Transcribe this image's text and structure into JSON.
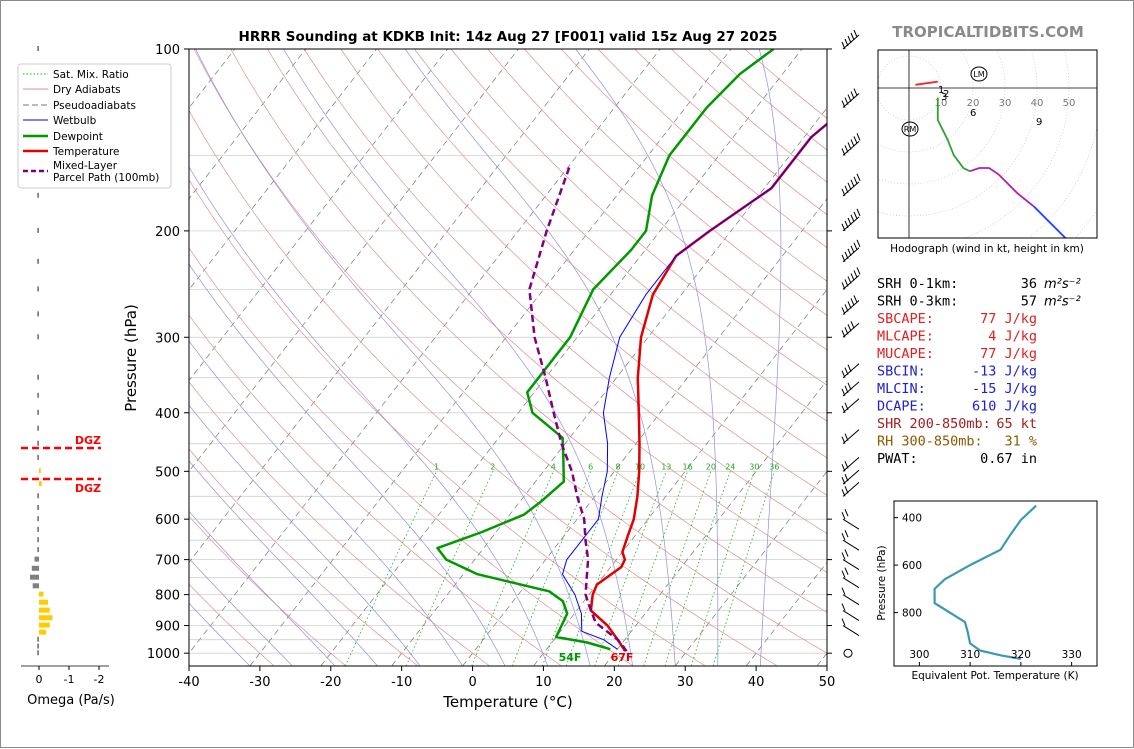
{
  "header": {
    "title": "HRRR Sounding at KDKB Init: 14z Aug 27 [F001] valid 15z Aug 27 2025",
    "brand": "TROPICALTIDBITS.COM"
  },
  "colors": {
    "temperature": "#e00000",
    "dewpoint": "#009900",
    "wetbulb": "#0000ff",
    "parcel": "#800080",
    "dry_adiabat": "#e09090",
    "moist_adiabat": "#9090e0",
    "mixing_ratio": "#22aa22",
    "dgz": "#ff0000",
    "omega_up": "#ffcc00",
    "omega_down": "#808080",
    "theta_e": "#3a9ab0"
  },
  "chart_data": [
    {
      "type": "line",
      "subtype": "skew-T log-P",
      "xlabel": "Temperature (°C)",
      "ylabel": "Pressure (hPa)",
      "xlim": [
        -40,
        50
      ],
      "ylim": [
        1050,
        100
      ],
      "y_scale": "log",
      "x_ticks": [
        -40,
        -30,
        -20,
        -10,
        0,
        10,
        20,
        30,
        40,
        50
      ],
      "y_ticks": [
        100,
        200,
        300,
        400,
        500,
        600,
        700,
        800,
        900,
        1000
      ],
      "legend": {
        "placement": "top-left",
        "entries": [
          "Sat. Mix. Ratio",
          "Dry Adiabats",
          "Pseudoadiabats",
          "Wetbulb",
          "Dewpoint",
          "Temperature",
          "Mixed-Layer\nParcel Path (100mb)"
        ]
      },
      "mixing_ratio_labels": [
        "1",
        "2",
        "4",
        "6",
        "8",
        "10",
        "13",
        "16",
        "20",
        "24",
        "30",
        "36"
      ],
      "series": [
        {
          "name": "Temperature",
          "points": [
            [
              21.3,
              992
            ],
            [
              19,
              950
            ],
            [
              16,
              900
            ],
            [
              12,
              850
            ],
            [
              10.5,
              800
            ],
            [
              10,
              770
            ],
            [
              11.5,
              720
            ],
            [
              11.2,
              700
            ],
            [
              10,
              680
            ],
            [
              9,
              640
            ],
            [
              8,
              600
            ],
            [
              6,
              550
            ],
            [
              3.5,
              500
            ],
            [
              0.5,
              450
            ],
            [
              -3,
              400
            ],
            [
              -7,
              350
            ],
            [
              -11,
              300
            ],
            [
              -14,
              255
            ],
            [
              -15,
              220
            ],
            [
              -13,
              200
            ],
            [
              -9,
              170
            ],
            [
              -9,
              140
            ],
            [
              -6,
              115
            ],
            [
              -3,
              100
            ]
          ]
        },
        {
          "name": "Dewpoint",
          "points": [
            [
              19,
              985
            ],
            [
              15,
              960
            ],
            [
              10,
              940
            ],
            [
              9.5,
              900
            ],
            [
              9,
              860
            ],
            [
              7,
              820
            ],
            [
              4,
              790
            ],
            [
              -8,
              740
            ],
            [
              -14,
              700
            ],
            [
              -16.5,
              670
            ],
            [
              -12,
              630
            ],
            [
              -8,
              590
            ],
            [
              -7,
              560
            ],
            [
              -6,
              520
            ],
            [
              -9,
              470
            ],
            [
              -11,
              440
            ],
            [
              -18,
              400
            ],
            [
              -21,
              370
            ],
            [
              -21,
              330
            ],
            [
              -21,
              300
            ],
            [
              -23,
              250
            ],
            [
              -22,
              215
            ],
            [
              -22,
              200
            ],
            [
              -25,
              175
            ],
            [
              -27,
              150
            ],
            [
              -27,
              125
            ],
            [
              -26,
              110
            ],
            [
              -24,
              100
            ]
          ]
        },
        {
          "name": "Wetbulb",
          "points": [
            [
              20,
              985
            ],
            [
              17,
              950
            ],
            [
              13,
              920
            ],
            [
              11,
              860
            ],
            [
              8,
              800
            ],
            [
              4,
              740
            ],
            [
              3,
              700
            ],
            [
              3,
              650
            ],
            [
              3,
              600
            ],
            [
              1,
              550
            ],
            [
              -1,
              500
            ],
            [
              -4,
              450
            ],
            [
              -8,
              400
            ],
            [
              -11,
              350
            ],
            [
              -14,
              300
            ],
            [
              -15,
              255
            ],
            [
              -15,
              220
            ],
            [
              -13,
              200
            ],
            [
              -9,
              170
            ],
            [
              -9,
              140
            ],
            [
              -6,
              115
            ],
            [
              -3,
              100
            ]
          ]
        },
        {
          "name": "Mixed-Layer Parcel Path (100mb)",
          "points": [
            [
              21.5,
              992
            ],
            [
              19,
              950
            ],
            [
              14,
              890
            ],
            [
              11,
              830
            ],
            [
              9.5,
              800
            ],
            [
              7.8,
              750
            ],
            [
              6,
              700
            ],
            [
              3.5,
              650
            ],
            [
              1,
              600
            ],
            [
              -2.5,
              550
            ],
            [
              -6,
              500
            ],
            [
              -10.5,
              450
            ],
            [
              -15,
              400
            ],
            [
              -20,
              350
            ],
            [
              -26,
              300
            ],
            [
              -32,
              250
            ],
            [
              -36,
              200
            ],
            [
              -40,
              155
            ]
          ]
        }
      ],
      "annotations": [
        "54F",
        "67F",
        "DGZ",
        "DGZ"
      ]
    },
    {
      "type": "bar",
      "title": "",
      "xlabel": "Omega (Pa/s)",
      "xlim": [
        0.5,
        -2.5
      ],
      "x_ticks": [
        0,
        -1,
        -2
      ],
      "levels_hpa": [
        100,
        120,
        150,
        175,
        200,
        225,
        250,
        275,
        300,
        350,
        375,
        400,
        425,
        450,
        475,
        500,
        525,
        550,
        575,
        600,
        625,
        650,
        675,
        700,
        725,
        750,
        775,
        800,
        825,
        850,
        875,
        900,
        925,
        950,
        975,
        1000
      ],
      "values": [
        0.02,
        0.02,
        0.02,
        0.02,
        0.02,
        0.02,
        0.02,
        0.02,
        0.02,
        0.02,
        0.02,
        0.02,
        0.02,
        0.02,
        0.02,
        -0.02,
        -0.03,
        0.02,
        0.02,
        0.02,
        0.02,
        0.02,
        0.02,
        0.05,
        0.08,
        0.1,
        0.07,
        -0.05,
        -0.1,
        -0.12,
        -0.15,
        -0.12,
        -0.08,
        0.02,
        0.02,
        0.02
      ]
    },
    {
      "type": "line",
      "subtype": "hodograph",
      "caption": "Hodograph (wind in kt, height in km)",
      "ring_labels": [
        "10",
        "20",
        "30",
        "40",
        "50"
      ],
      "markers": [
        "LM",
        "RM"
      ],
      "height_labels": [
        "1",
        "2",
        "3",
        "6",
        "9"
      ],
      "series": [
        {
          "color": "red",
          "points": [
            [
              2,
              1
            ],
            [
              9,
              2
            ]
          ]
        },
        {
          "color": "green",
          "points": [
            [
              9,
              -3
            ],
            [
              9,
              -10
            ],
            [
              12,
              -16
            ],
            [
              14,
              -21
            ],
            [
              17,
              -25
            ],
            [
              19,
              -26
            ]
          ]
        },
        {
          "color": "purple",
          "points": [
            [
              19,
              -26
            ],
            [
              22,
              -25
            ],
            [
              25,
              -25
            ],
            [
              28,
              -27
            ],
            [
              34,
              -33
            ],
            [
              39,
              -37
            ]
          ]
        },
        {
          "color": "blue",
          "points": [
            [
              39,
              -37
            ],
            [
              45,
              -43
            ],
            [
              51,
              -49
            ],
            [
              55,
              -56
            ],
            [
              57,
              -65
            ]
          ]
        }
      ]
    },
    {
      "type": "line",
      "title": "",
      "xlabel": "Equivalent Pot. Temperature (K)",
      "ylabel": "Pressure (hPa)",
      "x_ticks": [
        300,
        310,
        320,
        330
      ],
      "y_ticks": [
        400,
        600,
        800
      ],
      "series": [
        {
          "name": "",
          "points": [
            [
              323,
              350
            ],
            [
              320,
              410
            ],
            [
              318,
              470
            ],
            [
              316,
              535
            ],
            [
              310,
              600
            ],
            [
              305,
              660
            ],
            [
              303,
              700
            ],
            [
              303,
              760
            ],
            [
              306,
              800
            ],
            [
              309,
              840
            ],
            [
              309.5,
              880
            ],
            [
              310,
              930
            ],
            [
              312,
              960
            ],
            [
              316,
              980
            ],
            [
              320,
              995
            ]
          ]
        }
      ]
    }
  ],
  "indices": [
    {
      "label": "SRH 0-1km:",
      "value": "36",
      "unit": "m²s⁻²",
      "color": "#000000"
    },
    {
      "label": "SRH 0-3km:",
      "value": "57",
      "unit": "m²s⁻²",
      "color": "#000000"
    },
    {
      "label": "SBCAPE:",
      "value": "77 J/kg",
      "unit": "",
      "color": "#e02020"
    },
    {
      "label": "MLCAPE:",
      "value": "4 J/kg",
      "unit": "",
      "color": "#e02020"
    },
    {
      "label": "MUCAPE:",
      "value": "77 J/kg",
      "unit": "",
      "color": "#e02020"
    },
    {
      "label": "SBCIN:",
      "value": "-13 J/kg",
      "unit": "",
      "color": "#2020d0"
    },
    {
      "label": "MLCIN:",
      "value": "-15 J/kg",
      "unit": "",
      "color": "#2020d0"
    },
    {
      "label": "DCAPE:",
      "value": "610 J/kg",
      "unit": "",
      "color": "#2020d0"
    },
    {
      "label": "SHR 200-850mb:",
      "value": "65 kt",
      "unit": "",
      "color": "#a02020"
    },
    {
      "label": "RH 300-850mb:",
      "value": "31 %",
      "unit": "",
      "color": "#8a5a00"
    },
    {
      "label": "PWAT:",
      "value": "0.67 in",
      "unit": "",
      "color": "#000000"
    }
  ]
}
